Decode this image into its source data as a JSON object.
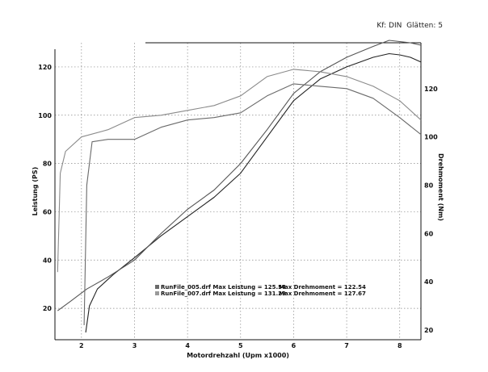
{
  "header": {
    "note": "Kf: DIN  Glätten: 5"
  },
  "chart_data": {
    "type": "line",
    "title": "",
    "xlabel": "Motordrehzahl (Upm x1000)",
    "ylabel": "Leistung (PS)",
    "y2label": "Drehmoment (Nm)",
    "xlim": [
      1.5,
      8.4
    ],
    "ylim": [
      7,
      130
    ],
    "y2lim": [
      16,
      139
    ],
    "x_ticks": [
      "2",
      "3",
      "4",
      "5",
      "6",
      "7",
      "8"
    ],
    "x_tick_values": [
      2,
      3,
      4,
      5,
      6,
      7,
      8
    ],
    "y_ticks": [
      "20",
      "40",
      "60",
      "80",
      "100",
      "120"
    ],
    "y_tick_values": [
      20,
      40,
      60,
      80,
      100,
      120
    ],
    "y2_ticks": [
      "20",
      "40",
      "60",
      "80",
      "100",
      "120"
    ],
    "y2_tick_values": [
      20,
      40,
      60,
      80,
      100,
      120
    ],
    "grid": true,
    "series": [
      {
        "name": "RunFile_005.drf",
        "quantity": "Leistung",
        "axis": "left",
        "color": "#222222",
        "x": [
          2.08,
          2.15,
          2.3,
          2.6,
          3.0,
          3.5,
          4.0,
          4.5,
          5.0,
          5.5,
          6.0,
          6.5,
          7.0,
          7.5,
          7.8,
          8.0,
          8.2,
          8.4
        ],
        "y": [
          10,
          21,
          28,
          34,
          41,
          50,
          58,
          66,
          76,
          91,
          106,
          115,
          120,
          124,
          125.5,
          125,
          124,
          122
        ]
      },
      {
        "name": "RunFile_007.drf",
        "quantity": "Leistung",
        "axis": "left",
        "color": "#555555",
        "x": [
          1.55,
          1.8,
          2.1,
          2.5,
          3.0,
          3.5,
          4.0,
          4.5,
          5.0,
          5.5,
          6.0,
          6.5,
          7.0,
          7.5,
          7.8,
          8.0,
          8.2,
          8.4
        ],
        "y": [
          19,
          23,
          28,
          33,
          40,
          51,
          61,
          69,
          80,
          94,
          109,
          118,
          124,
          128.5,
          131,
          130.5,
          130,
          129
        ]
      },
      {
        "name": "RunFile_005.drf",
        "quantity": "Drehmoment",
        "axis": "right",
        "color": "#6a6a6a",
        "x": [
          2.05,
          2.1,
          2.2,
          2.5,
          3.0,
          3.5,
          4.0,
          4.5,
          5.0,
          5.5,
          6.0,
          6.5,
          7.0,
          7.5,
          8.0,
          8.4
        ],
        "y": [
          22,
          80,
          98,
          99,
          99,
          104,
          107,
          108,
          110,
          117,
          122,
          121,
          120,
          116,
          108,
          101
        ]
      },
      {
        "name": "RunFile_007.drf",
        "quantity": "Drehmoment",
        "axis": "right",
        "color": "#8a8a8a",
        "x": [
          1.55,
          1.6,
          1.7,
          2.0,
          2.5,
          3.0,
          3.5,
          4.0,
          4.5,
          5.0,
          5.5,
          6.0,
          6.5,
          7.0,
          7.5,
          8.0,
          8.4
        ],
        "y": [
          44,
          85,
          94,
          100,
          103,
          108,
          109,
          111,
          113,
          117,
          125,
          128,
          127,
          125,
          121,
          115,
          107
        ]
      }
    ],
    "legend": {
      "placement": "bottom-center",
      "entries": [
        {
          "label": "RunFile_005.drf Max Leistung = 125.54",
          "torque_label": "Max Drehmoment = 122.54",
          "swatch": "#6a6a6a"
        },
        {
          "label": "RunFile_007.drf Max Leistung = 131.29",
          "torque_label": "Max Drehmoment = 127.67",
          "swatch": "#9a9a9a"
        }
      ]
    }
  }
}
